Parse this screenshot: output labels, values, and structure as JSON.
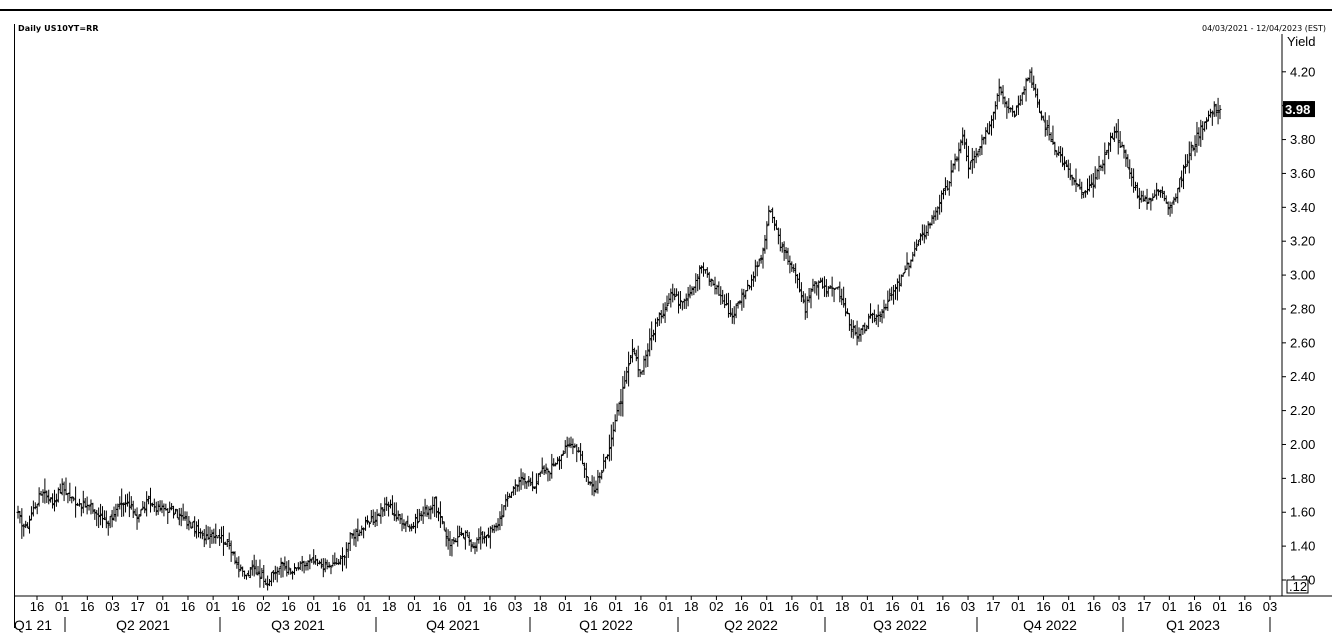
{
  "chart_data": {
    "type": "ohlc-bar",
    "title": "Daily US10YT=RR",
    "date_range": "04/03/2021 - 12/04/2023 (EST)",
    "ylabel": "Yield",
    "ylim": [
      1.1,
      4.35
    ],
    "y_ticks": [
      "4.20",
      "4.00",
      "3.80",
      "3.60",
      "3.40",
      "3.20",
      "3.00",
      "2.80",
      "2.60",
      "2.40",
      "2.20",
      "2.00",
      "1.80",
      "1.60",
      "1.40",
      "1.20"
    ],
    "last_value": "3.98",
    "scale_marker": ".12",
    "x_day_ticks": [
      "16",
      "01",
      "16",
      "03",
      "17",
      "01",
      "16",
      "01",
      "16",
      "02",
      "16",
      "01",
      "16",
      "01",
      "18",
      "01",
      "16",
      "01",
      "16",
      "03",
      "18",
      "01",
      "16",
      "01",
      "16",
      "01",
      "18",
      "02",
      "16",
      "01",
      "16",
      "01",
      "18",
      "01",
      "16",
      "01",
      "16",
      "03",
      "17",
      "01",
      "16",
      "01",
      "16",
      "03",
      "17",
      "01",
      "16",
      "01",
      "16",
      "03"
    ],
    "quarters": [
      "Q1 21",
      "Q2 2021",
      "Q3 2021",
      "Q4 2021",
      "Q1 2022",
      "Q2 2022",
      "Q3 2022",
      "Q4 2022",
      "Q1 2023"
    ],
    "anchors": [
      [
        0,
        1.58
      ],
      [
        4,
        1.5
      ],
      [
        8,
        1.62
      ],
      [
        13,
        1.73
      ],
      [
        18,
        1.66
      ],
      [
        23,
        1.75
      ],
      [
        28,
        1.68
      ],
      [
        34,
        1.64
      ],
      [
        38,
        1.63
      ],
      [
        42,
        1.58
      ],
      [
        47,
        1.55
      ],
      [
        52,
        1.62
      ],
      [
        57,
        1.65
      ],
      [
        62,
        1.58
      ],
      [
        68,
        1.66
      ],
      [
        73,
        1.62
      ],
      [
        78,
        1.62
      ],
      [
        84,
        1.58
      ],
      [
        88,
        1.54
      ],
      [
        92,
        1.51
      ],
      [
        96,
        1.45
      ],
      [
        100,
        1.48
      ],
      [
        104,
        1.47
      ],
      [
        108,
        1.43
      ],
      [
        112,
        1.37
      ],
      [
        115,
        1.26
      ],
      [
        119,
        1.22
      ],
      [
        122,
        1.27
      ],
      [
        126,
        1.24
      ],
      [
        130,
        1.19
      ],
      [
        134,
        1.25
      ],
      [
        138,
        1.29
      ],
      [
        142,
        1.24
      ],
      [
        147,
        1.28
      ],
      [
        152,
        1.31
      ],
      [
        157,
        1.29
      ],
      [
        161,
        1.28
      ],
      [
        165,
        1.29
      ],
      [
        169,
        1.33
      ],
      [
        173,
        1.45
      ],
      [
        177,
        1.49
      ],
      [
        181,
        1.52
      ],
      [
        185,
        1.55
      ],
      [
        189,
        1.61
      ],
      [
        193,
        1.65
      ],
      [
        197,
        1.57
      ],
      [
        201,
        1.55
      ],
      [
        205,
        1.51
      ],
      [
        209,
        1.58
      ],
      [
        213,
        1.61
      ],
      [
        217,
        1.66
      ],
      [
        221,
        1.52
      ],
      [
        225,
        1.42
      ],
      [
        229,
        1.45
      ],
      [
        233,
        1.46
      ],
      [
        237,
        1.41
      ],
      [
        241,
        1.45
      ],
      [
        245,
        1.48
      ],
      [
        249,
        1.51
      ],
      [
        253,
        1.63
      ],
      [
        257,
        1.73
      ],
      [
        261,
        1.79
      ],
      [
        265,
        1.78
      ],
      [
        269,
        1.77
      ],
      [
        273,
        1.84
      ],
      [
        277,
        1.85
      ],
      [
        281,
        1.92
      ],
      [
        285,
        1.97
      ],
      [
        289,
        2.01
      ],
      [
        293,
        1.95
      ],
      [
        296,
        1.81
      ],
      [
        300,
        1.73
      ],
      [
        304,
        1.84
      ],
      [
        308,
        2.0
      ],
      [
        312,
        2.18
      ],
      [
        316,
        2.36
      ],
      [
        320,
        2.55
      ],
      [
        324,
        2.42
      ],
      [
        328,
        2.57
      ],
      [
        332,
        2.71
      ],
      [
        336,
        2.79
      ],
      [
        340,
        2.9
      ],
      [
        344,
        2.85
      ],
      [
        348,
        2.88
      ],
      [
        352,
        2.95
      ],
      [
        356,
        3.05
      ],
      [
        360,
        2.98
      ],
      [
        364,
        2.92
      ],
      [
        368,
        2.83
      ],
      [
        372,
        2.76
      ],
      [
        376,
        2.86
      ],
      [
        380,
        2.93
      ],
      [
        384,
        3.03
      ],
      [
        388,
        3.13
      ],
      [
        391,
        3.38
      ],
      [
        394,
        3.3
      ],
      [
        398,
        3.15
      ],
      [
        402,
        3.08
      ],
      [
        406,
        2.96
      ],
      [
        410,
        2.8
      ],
      [
        414,
        2.95
      ],
      [
        418,
        2.97
      ],
      [
        422,
        2.9
      ],
      [
        426,
        2.94
      ],
      [
        430,
        2.82
      ],
      [
        434,
        2.7
      ],
      [
        437,
        2.62
      ],
      [
        440,
        2.68
      ],
      [
        444,
        2.74
      ],
      [
        448,
        2.76
      ],
      [
        452,
        2.83
      ],
      [
        456,
        2.9
      ],
      [
        460,
        2.98
      ],
      [
        464,
        3.07
      ],
      [
        468,
        3.17
      ],
      [
        472,
        3.25
      ],
      [
        476,
        3.33
      ],
      [
        480,
        3.44
      ],
      [
        484,
        3.52
      ],
      [
        488,
        3.67
      ],
      [
        492,
        3.82
      ],
      [
        495,
        3.64
      ],
      [
        499,
        3.7
      ],
      [
        503,
        3.8
      ],
      [
        507,
        3.92
      ],
      [
        511,
        4.12
      ],
      [
        515,
        4.01
      ],
      [
        519,
        3.96
      ],
      [
        523,
        4.09
      ],
      [
        527,
        4.2
      ],
      [
        531,
        4.0
      ],
      [
        535,
        3.88
      ],
      [
        539,
        3.78
      ],
      [
        543,
        3.7
      ],
      [
        547,
        3.61
      ],
      [
        551,
        3.53
      ],
      [
        555,
        3.47
      ],
      [
        559,
        3.52
      ],
      [
        563,
        3.62
      ],
      [
        567,
        3.74
      ],
      [
        571,
        3.86
      ],
      [
        575,
        3.75
      ],
      [
        579,
        3.6
      ],
      [
        583,
        3.48
      ],
      [
        587,
        3.43
      ],
      [
        591,
        3.47
      ],
      [
        595,
        3.5
      ],
      [
        599,
        3.42
      ],
      [
        603,
        3.47
      ],
      [
        607,
        3.62
      ],
      [
        611,
        3.74
      ],
      [
        615,
        3.84
      ],
      [
        619,
        3.93
      ],
      [
        623,
        3.98
      ],
      [
        626,
        3.98
      ]
    ]
  }
}
